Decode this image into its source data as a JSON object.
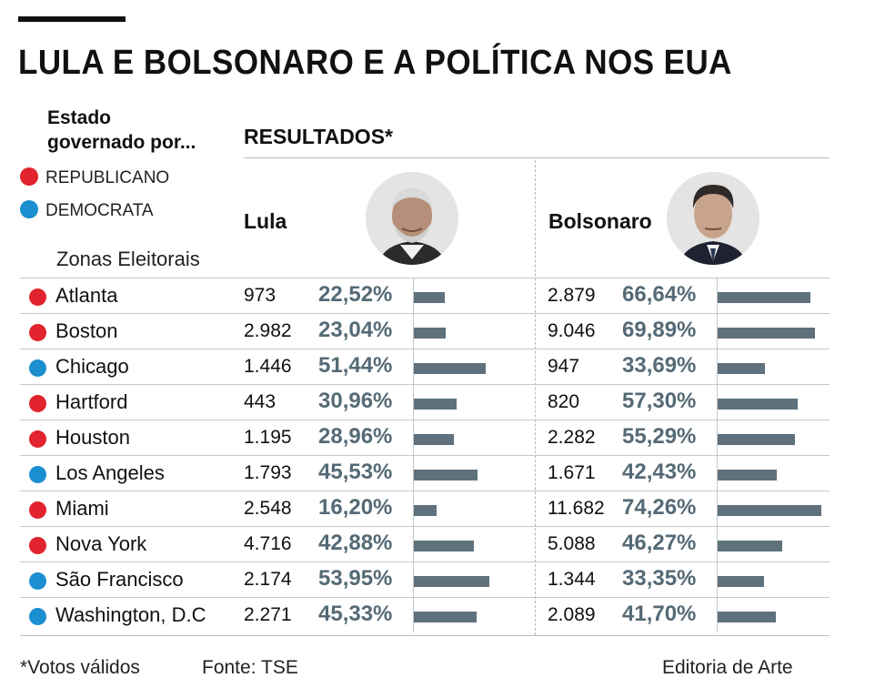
{
  "title": "LULA E BOLSONARO E A POLÍTICA NOS EUA",
  "legend": {
    "heading_line1": "Estado",
    "heading_line2": "governado por...",
    "republican_label": "REPUBLICANO",
    "democrat_label": "DEMOCRATA"
  },
  "colors": {
    "republican": "#e1242d",
    "democrat": "#1b8fd0",
    "bar": "#5e717c",
    "percent_text": "#556a76"
  },
  "results_heading": "RESULTADOS*",
  "zones_heading": "Zonas Eleitorais",
  "candidates": [
    {
      "name": "Lula"
    },
    {
      "name": "Bolsonaro"
    }
  ],
  "chart_data": {
    "type": "table",
    "columns": [
      "Zonas Eleitorais",
      "Lula",
      "Lula %",
      "Bolsonaro",
      "Bolsonaro %"
    ],
    "rows": [
      {
        "city": "Atlanta",
        "party": "republican",
        "lula_votes": "973",
        "lula_pct": "22,52%",
        "lula_pct_value": 22.52,
        "bolsonaro_votes": "2.879",
        "bolsonaro_pct": "66,64%",
        "bolsonaro_pct_value": 66.64
      },
      {
        "city": "Boston",
        "party": "republican",
        "lula_votes": "2.982",
        "lula_pct": "23,04%",
        "lula_pct_value": 23.04,
        "bolsonaro_votes": "9.046",
        "bolsonaro_pct": "69,89%",
        "bolsonaro_pct_value": 69.89
      },
      {
        "city": "Chicago",
        "party": "democrat",
        "lula_votes": "1.446",
        "lula_pct": "51,44%",
        "lula_pct_value": 51.44,
        "bolsonaro_votes": "947",
        "bolsonaro_pct": "33,69%",
        "bolsonaro_pct_value": 33.69
      },
      {
        "city": "Hartford",
        "party": "republican",
        "lula_votes": "443",
        "lula_pct": "30,96%",
        "lula_pct_value": 30.96,
        "bolsonaro_votes": "820",
        "bolsonaro_pct": "57,30%",
        "bolsonaro_pct_value": 57.3
      },
      {
        "city": "Houston",
        "party": "republican",
        "lula_votes": "1.195",
        "lula_pct": "28,96%",
        "lula_pct_value": 28.96,
        "bolsonaro_votes": "2.282",
        "bolsonaro_pct": "55,29%",
        "bolsonaro_pct_value": 55.29
      },
      {
        "city": "Los Angeles",
        "party": "democrat",
        "lula_votes": "1.793",
        "lula_pct": "45,53%",
        "lula_pct_value": 45.53,
        "bolsonaro_votes": "1.671",
        "bolsonaro_pct": "42,43%",
        "bolsonaro_pct_value": 42.43
      },
      {
        "city": "Miami",
        "party": "republican",
        "lula_votes": "2.548",
        "lula_pct": "16,20%",
        "lula_pct_value": 16.2,
        "bolsonaro_votes": "11.682",
        "bolsonaro_pct": "74,26%",
        "bolsonaro_pct_value": 74.26
      },
      {
        "city": "Nova York",
        "party": "republican",
        "lula_votes": "4.716",
        "lula_pct": "42,88%",
        "lula_pct_value": 42.88,
        "bolsonaro_votes": "5.088",
        "bolsonaro_pct": "46,27%",
        "bolsonaro_pct_value": 46.27
      },
      {
        "city": "São Francisco",
        "party": "democrat",
        "lula_votes": "2.174",
        "lula_pct": "53,95%",
        "lula_pct_value": 53.95,
        "bolsonaro_votes": "1.344",
        "bolsonaro_pct": "33,35%",
        "bolsonaro_pct_value": 33.35
      },
      {
        "city": "Washington, D.C",
        "party": "democrat",
        "lula_votes": "2.271",
        "lula_pct": "45,33%",
        "lula_pct_value": 45.33,
        "bolsonaro_votes": "2.089",
        "bolsonaro_pct": "41,70%",
        "bolsonaro_pct_value": 41.7
      }
    ]
  },
  "footer": {
    "note": "*Votos válidos",
    "source": "Fonte: TSE",
    "credit": "Editoria de Arte"
  }
}
